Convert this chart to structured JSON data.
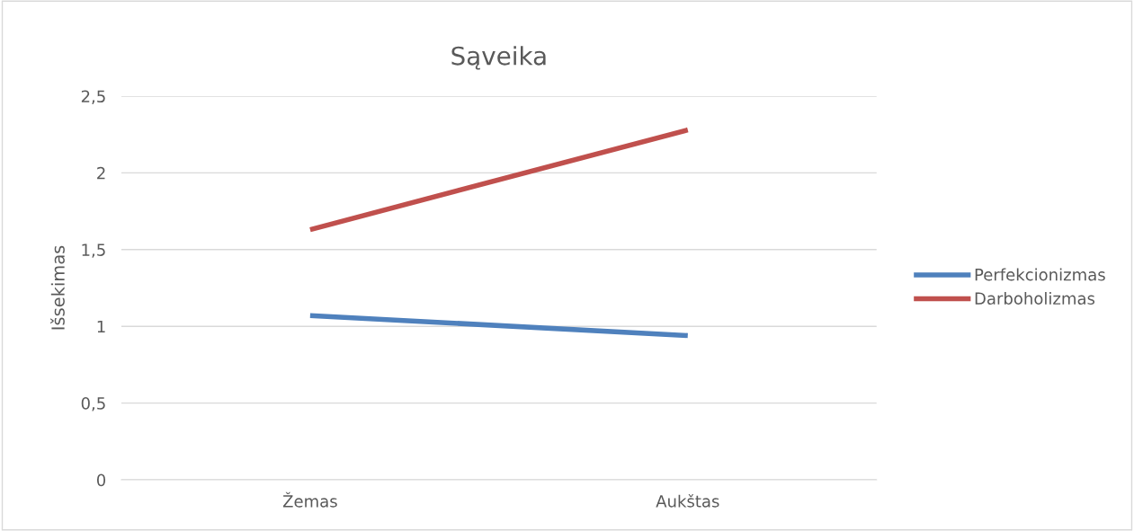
{
  "chart_data": {
    "type": "line",
    "title": "Sąveika",
    "ylabel": "Išsekimas",
    "categories": [
      "Žemas",
      "Aukštas"
    ],
    "series": [
      {
        "name": "Perfekcionizmas",
        "color": "#4f81bd",
        "values": [
          1.07,
          0.94
        ]
      },
      {
        "name": "Darboholizmas",
        "color": "#c0504d",
        "values": [
          1.63,
          2.28
        ]
      }
    ],
    "ylim": [
      0,
      2.5
    ],
    "yticks": [
      {
        "value": 0,
        "label": "0"
      },
      {
        "value": 0.5,
        "label": "0,5"
      },
      {
        "value": 1,
        "label": "1"
      },
      {
        "value": 1.5,
        "label": "1,5"
      },
      {
        "value": 2,
        "label": "2"
      },
      {
        "value": 2.5,
        "label": "2,5"
      }
    ],
    "grid": "y",
    "legend": "right",
    "marker": "none",
    "line_style": "solid"
  }
}
